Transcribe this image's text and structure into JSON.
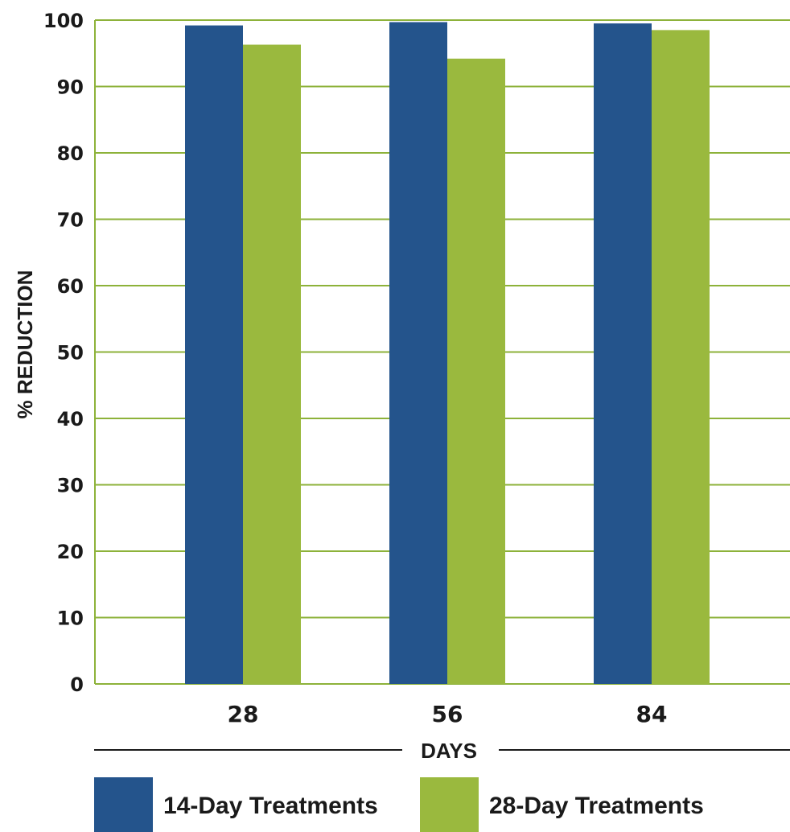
{
  "chart_data": {
    "type": "bar",
    "categories": [
      "28",
      "56",
      "84"
    ],
    "series": [
      {
        "name": "14-Day Treatments",
        "color": "#24548c",
        "values": [
          99.2,
          99.7,
          99.5
        ]
      },
      {
        "name": "28-Day Treatments",
        "color": "#9ab93e",
        "values": [
          96.3,
          94.2,
          98.5
        ]
      }
    ],
    "xlabel": "DAYS",
    "ylabel": "% REDUCTION",
    "ylim": [
      0,
      100
    ],
    "yticks": [
      "0",
      "10",
      "20",
      "30",
      "40",
      "50",
      "60",
      "70",
      "80",
      "90",
      "100"
    ],
    "grid": true,
    "grid_color": "#8db23a",
    "legend_position": "bottom"
  }
}
